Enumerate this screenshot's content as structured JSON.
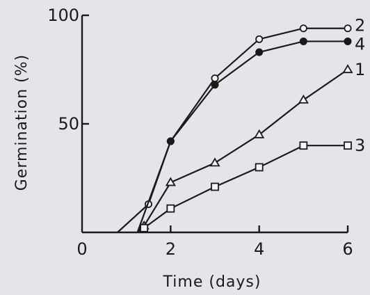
{
  "chart_data": {
    "type": "line",
    "xlabel": "Time (days)",
    "ylabel": "Germination (%)",
    "xlim": [
      0,
      6
    ],
    "ylim": [
      0,
      100
    ],
    "x_ticks": [
      "0",
      "2",
      "4",
      "6"
    ],
    "y_ticks": [
      "50",
      "100"
    ],
    "grid": false,
    "legend": "inline labels at right end of lines",
    "series": [
      {
        "name": "2",
        "marker": "open-circle",
        "x": [
          0.8,
          1.5,
          2,
          3,
          4,
          5,
          6
        ],
        "y": [
          0,
          13,
          42,
          71,
          89,
          94,
          94
        ]
      },
      {
        "name": "4",
        "marker": "filled-circle",
        "x": [
          1.25,
          2,
          3,
          4,
          5,
          6
        ],
        "y": [
          0,
          42,
          68,
          83,
          88,
          88
        ]
      },
      {
        "name": "1",
        "marker": "open-triangle",
        "x": [
          1.25,
          1.4,
          2,
          3,
          4,
          5,
          6
        ],
        "y": [
          0,
          3,
          23,
          32,
          45,
          61,
          75
        ]
      },
      {
        "name": "3",
        "marker": "open-square",
        "x": [
          1.25,
          1.4,
          2,
          3,
          4,
          5,
          6
        ],
        "y": [
          0,
          2,
          11,
          21,
          30,
          40,
          40
        ]
      }
    ]
  }
}
